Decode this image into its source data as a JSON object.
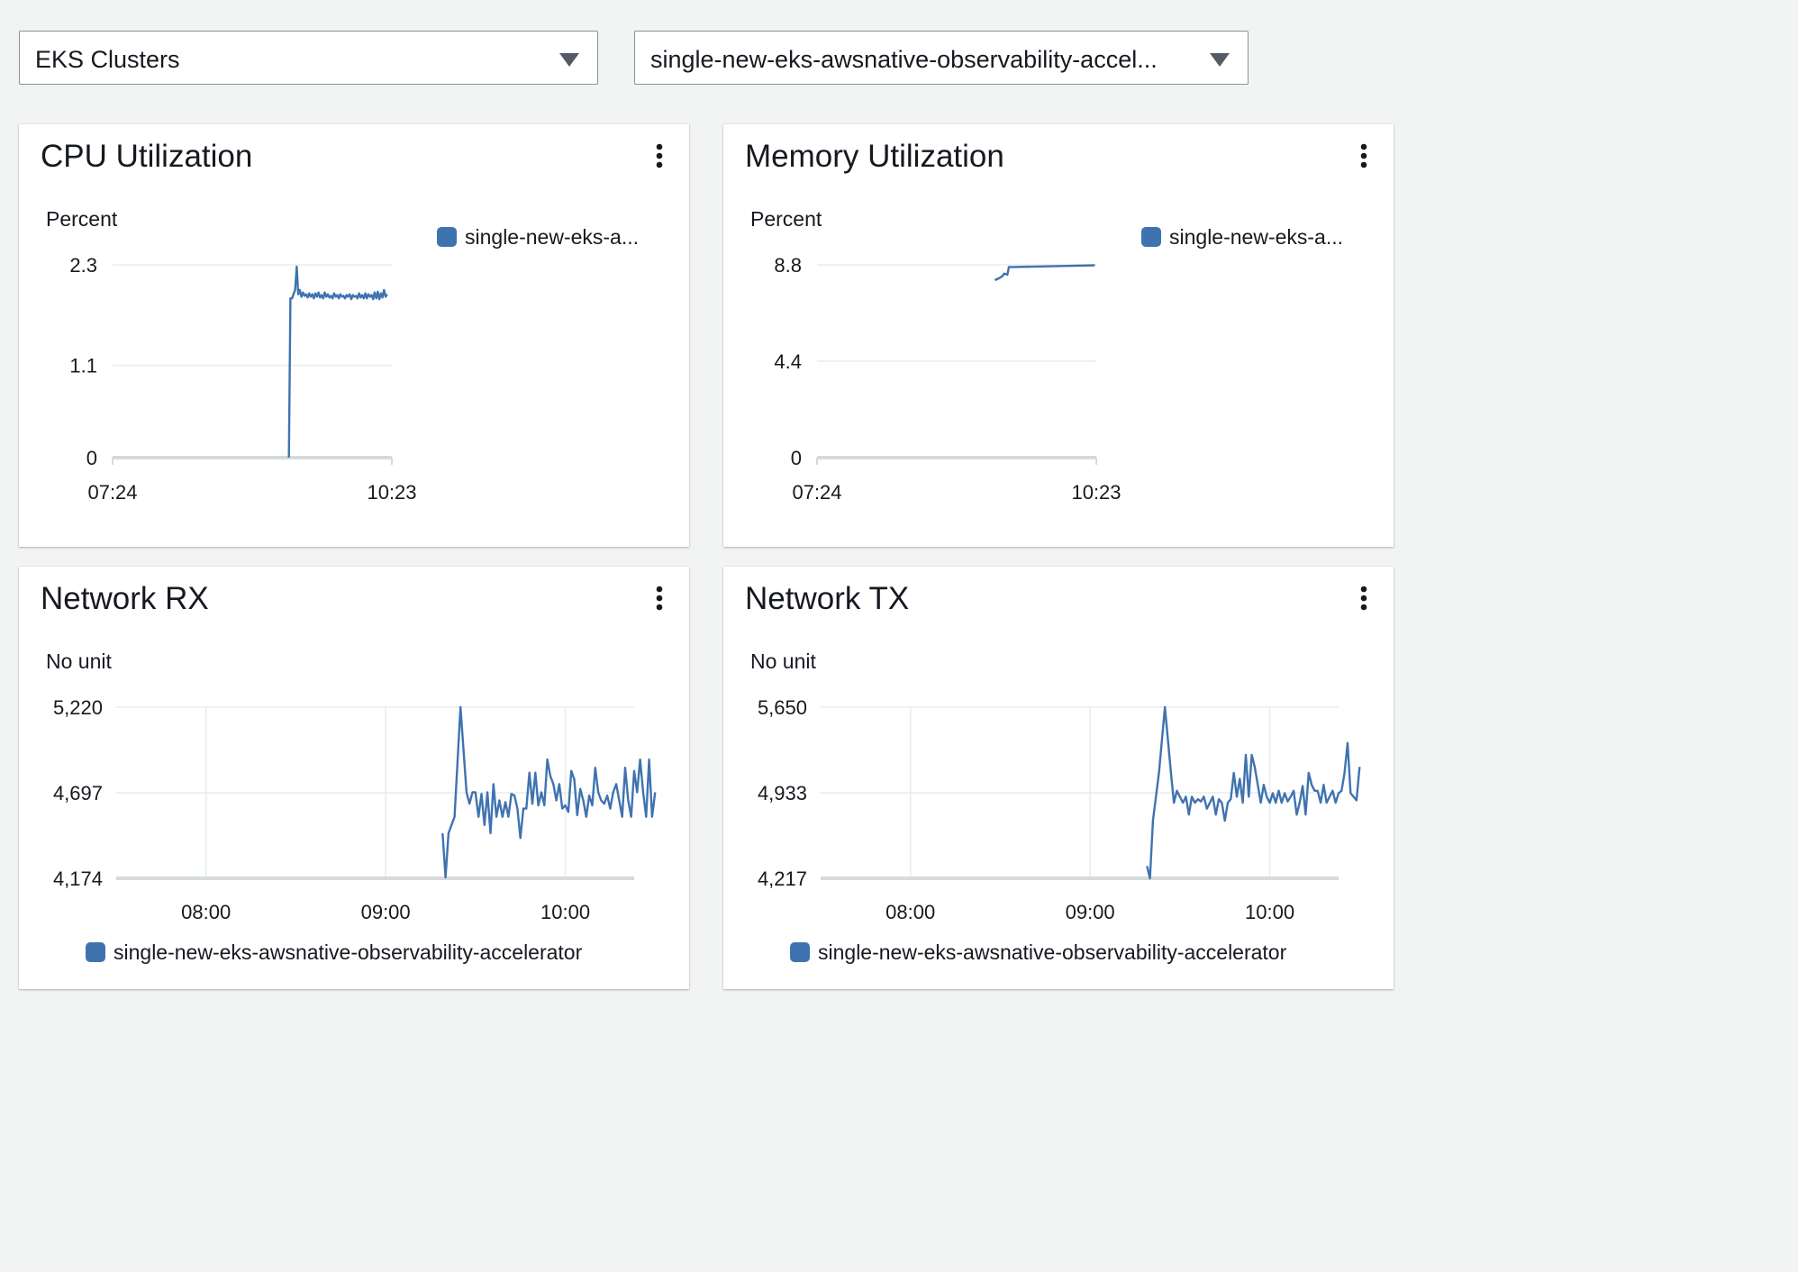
{
  "selectors": {
    "service": "EKS Clusters",
    "resource": "single-new-eks-awsnative-observability-accel..."
  },
  "colors": {
    "series": "#3f73b0",
    "grid": "#e9ebed",
    "axis": "#d5dbdb"
  },
  "icons": {
    "dropdown": "caret-down-icon",
    "menu": "kebab-menu-icon",
    "legend": "legend-swatch"
  },
  "widgets": {
    "cpu": {
      "title": "CPU Utilization",
      "unit": "Percent",
      "legend": "single-new-eks-a..."
    },
    "memory": {
      "title": "Memory Utilization",
      "unit": "Percent",
      "legend": "single-new-eks-a..."
    },
    "rx": {
      "title": "Network RX",
      "unit": "No unit",
      "legend": "single-new-eks-awsnative-observability-accelerator"
    },
    "tx": {
      "title": "Network TX",
      "unit": "No unit",
      "legend": "single-new-eks-awsnative-observability-accelerator"
    }
  },
  "chart_data": [
    {
      "id": "cpu",
      "type": "line",
      "title": "CPU Utilization",
      "ylabel": "Percent",
      "ylim": [
        0,
        2.3
      ],
      "yticks": [
        "0",
        "1.1",
        "2.3"
      ],
      "ytick_values": [
        0,
        1.1,
        2.3
      ],
      "xlim": [
        "07:24",
        "10:23"
      ],
      "xticks": [
        "07:24",
        "10:23"
      ],
      "xtick_values": [
        0,
        179
      ],
      "grid": true,
      "legend_position": "top-right",
      "series": [
        {
          "name": "single-new-eks-a...",
          "x": [
            113,
            114,
            115,
            116,
            117,
            118,
            119,
            120,
            121,
            122,
            123,
            124,
            125,
            126,
            127,
            128,
            129,
            130,
            131,
            132,
            133,
            134,
            135,
            136,
            137,
            138,
            139,
            140,
            141,
            142,
            143,
            144,
            145,
            146,
            147,
            148,
            149,
            150,
            151,
            152,
            153,
            154,
            155,
            156,
            157,
            158,
            159,
            160,
            161,
            162,
            163,
            164,
            165,
            166,
            167,
            168,
            169,
            170,
            171,
            172,
            173,
            174,
            175,
            176
          ],
          "y": [
            0,
            1.9,
            1.9,
            1.95,
            2.0,
            2.28,
            1.95,
            2.0,
            1.92,
            1.97,
            1.93,
            1.95,
            1.91,
            1.96,
            1.92,
            1.95,
            1.9,
            1.96,
            1.92,
            1.97,
            1.91,
            1.94,
            1.9,
            1.97,
            1.92,
            1.95,
            1.91,
            1.93,
            1.9,
            1.96,
            1.92,
            1.94,
            1.9,
            1.95,
            1.92,
            1.93,
            1.9,
            1.94,
            1.92,
            1.95,
            1.89,
            1.94,
            1.92,
            1.93,
            1.9,
            1.96,
            1.91,
            1.94,
            1.9,
            1.96,
            1.9,
            1.95,
            1.92,
            1.94,
            1.89,
            1.97,
            1.9,
            1.98,
            1.89,
            1.96,
            1.91,
            2.0,
            1.92,
            1.95
          ]
        }
      ]
    },
    {
      "id": "memory",
      "type": "line",
      "title": "Memory Utilization",
      "ylabel": "Percent",
      "ylim": [
        0,
        8.8
      ],
      "yticks": [
        "0",
        "4.4",
        "8.8"
      ],
      "ytick_values": [
        0,
        4.4,
        8.8
      ],
      "xlim": [
        "07:24",
        "10:23"
      ],
      "xticks": [
        "07:24",
        "10:23"
      ],
      "xtick_values": [
        0,
        179
      ],
      "grid": true,
      "legend_position": "top-right",
      "series": [
        {
          "name": "single-new-eks-a...",
          "x": [
            114,
            117,
            119,
            120,
            122,
            123,
            125,
            140,
            160,
            178
          ],
          "y": [
            8.1,
            8.2,
            8.3,
            8.4,
            8.35,
            8.7,
            8.7,
            8.72,
            8.75,
            8.78
          ]
        }
      ]
    },
    {
      "id": "rx",
      "type": "line",
      "title": "Network RX",
      "ylabel": "No unit",
      "ylim": [
        4174,
        5220
      ],
      "yticks": [
        "4,174",
        "4,697",
        "5,220"
      ],
      "ytick_values": [
        4174,
        4697,
        5220
      ],
      "xlim": [
        "07:30",
        "10:23"
      ],
      "xticks": [
        "08:00",
        "09:00",
        "10:00"
      ],
      "xtick_values": [
        30,
        90,
        150
      ],
      "grid": true,
      "legend_position": "bottom",
      "series": [
        {
          "name": "single-new-eks-awsnative-observability-accelerator",
          "x": [
            109,
            110,
            111,
            113,
            115,
            117,
            118,
            119,
            120,
            121,
            122,
            123,
            124,
            125,
            126,
            127,
            128,
            129,
            130,
            131,
            132,
            133,
            134,
            135,
            136,
            137,
            138,
            139,
            140,
            141,
            142,
            143,
            144,
            145,
            146,
            147,
            148,
            149,
            150,
            151,
            152,
            153,
            154,
            155,
            156,
            157,
            158,
            159,
            160,
            161,
            162,
            163,
            164,
            165,
            166,
            167,
            168,
            169,
            170,
            171,
            172,
            173,
            174,
            175,
            176,
            177,
            178,
            179,
            180
          ],
          "y": [
            4450,
            4180,
            4450,
            4550,
            5220,
            4700,
            4630,
            4700,
            4700,
            4550,
            4690,
            4500,
            4700,
            4450,
            4750,
            4550,
            4650,
            4550,
            4640,
            4550,
            4690,
            4680,
            4600,
            4420,
            4600,
            4600,
            4820,
            4630,
            4820,
            4620,
            4700,
            4620,
            4900,
            4800,
            4750,
            4650,
            4750,
            4600,
            4620,
            4580,
            4830,
            4780,
            4560,
            4720,
            4650,
            4550,
            4680,
            4620,
            4850,
            4700,
            4650,
            4630,
            4680,
            4600,
            4700,
            4750,
            4650,
            4550,
            4850,
            4650,
            4550,
            4830,
            4700,
            4900,
            4700,
            4550,
            4900,
            4550,
            4700
          ]
        }
      ]
    },
    {
      "id": "tx",
      "type": "line",
      "title": "Network TX",
      "ylabel": "No unit",
      "ylim": [
        4217,
        5650
      ],
      "yticks": [
        "4,217",
        "4,933",
        "5,650"
      ],
      "ytick_values": [
        4217,
        4933,
        5650
      ],
      "xlim": [
        "07:30",
        "10:23"
      ],
      "xticks": [
        "08:00",
        "09:00",
        "10:00"
      ],
      "xtick_values": [
        30,
        90,
        150
      ],
      "grid": true,
      "legend_position": "bottom",
      "series": [
        {
          "name": "single-new-eks-awsnative-observability-accelerator",
          "x": [
            109,
            110,
            111,
            113,
            115,
            117,
            118,
            119,
            120,
            121,
            122,
            123,
            124,
            125,
            126,
            127,
            128,
            129,
            130,
            131,
            132,
            133,
            134,
            135,
            136,
            137,
            138,
            139,
            140,
            141,
            142,
            143,
            144,
            145,
            146,
            147,
            148,
            149,
            150,
            151,
            152,
            153,
            154,
            155,
            156,
            157,
            158,
            159,
            160,
            161,
            162,
            163,
            164,
            165,
            166,
            167,
            168,
            169,
            170,
            171,
            172,
            173,
            174,
            175,
            176,
            177,
            178,
            179,
            180
          ],
          "y": [
            4320,
            4217,
            4700,
            5100,
            5650,
            5100,
            4850,
            4950,
            4900,
            4850,
            4900,
            4750,
            4900,
            4850,
            4880,
            4860,
            4900,
            4800,
            4850,
            4900,
            4750,
            4880,
            4850,
            4700,
            4850,
            4880,
            5100,
            4900,
            5050,
            4850,
            5250,
            4900,
            5250,
            5150,
            5000,
            4850,
            5000,
            4900,
            4850,
            4930,
            4850,
            4950,
            4850,
            4930,
            4860,
            4900,
            4950,
            4750,
            4850,
            4990,
            4750,
            5100,
            5000,
            4950,
            4950,
            4850,
            5000,
            4850,
            4900,
            4950,
            4850,
            4930,
            4950,
            5100,
            5350,
            4930,
            4900,
            4870,
            5150
          ]
        }
      ]
    }
  ]
}
